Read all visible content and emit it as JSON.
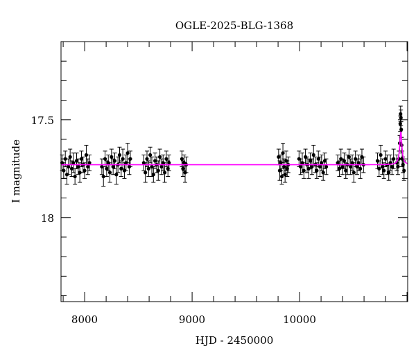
{
  "chart_data": {
    "type": "scatter",
    "title": "OGLE-2025-BLG-1368",
    "xlabel": "HJD - 2450000",
    "ylabel": "I magnitude",
    "xlim": [
      7780,
      11006
    ],
    "ylim": [
      18.43,
      17.1
    ],
    "y_inverted": true,
    "grid": false,
    "x_ticks": [
      8000,
      9000,
      10000
    ],
    "x_tick_labels": [
      "8000",
      "9000",
      "10000"
    ],
    "x_minor_step": 200,
    "y_ticks": [
      17.5,
      18
    ],
    "y_tick_labels": [
      "17.5",
      "18"
    ],
    "y_minor_step": 0.1,
    "colors": {
      "data": "#000000",
      "model": "#ff00ff",
      "model_peak": "#800080"
    },
    "model": {
      "baseline_mag": 17.73,
      "peak_mag": 17.56,
      "t0": 10942,
      "tE": 12
    },
    "points": [
      [
        7790,
        17.72,
        0.04
      ],
      [
        7805,
        17.76,
        0.04
      ],
      [
        7820,
        17.7,
        0.04
      ],
      [
        7835,
        17.78,
        0.05
      ],
      [
        7850,
        17.74,
        0.04
      ],
      [
        7865,
        17.69,
        0.04
      ],
      [
        7880,
        17.75,
        0.04
      ],
      [
        7895,
        17.72,
        0.05
      ],
      [
        7910,
        17.79,
        0.04
      ],
      [
        7925,
        17.71,
        0.04
      ],
      [
        7940,
        17.74,
        0.04
      ],
      [
        7955,
        17.77,
        0.05
      ],
      [
        7970,
        17.7,
        0.04
      ],
      [
        7985,
        17.73,
        0.04
      ],
      [
        8000,
        17.76,
        0.04
      ],
      [
        8015,
        17.68,
        0.05
      ],
      [
        8030,
        17.74,
        0.04
      ],
      [
        8045,
        17.72,
        0.04
      ],
      [
        8160,
        17.74,
        0.04
      ],
      [
        8175,
        17.79,
        0.05
      ],
      [
        8190,
        17.7,
        0.04
      ],
      [
        8205,
        17.75,
        0.04
      ],
      [
        8220,
        17.72,
        0.04
      ],
      [
        8235,
        17.77,
        0.05
      ],
      [
        8250,
        17.69,
        0.04
      ],
      [
        8265,
        17.74,
        0.04
      ],
      [
        8280,
        17.71,
        0.04
      ],
      [
        8295,
        17.78,
        0.05
      ],
      [
        8310,
        17.73,
        0.04
      ],
      [
        8325,
        17.68,
        0.04
      ],
      [
        8340,
        17.75,
        0.04
      ],
      [
        8355,
        17.7,
        0.05
      ],
      [
        8370,
        17.76,
        0.04
      ],
      [
        8385,
        17.72,
        0.04
      ],
      [
        8400,
        17.67,
        0.05
      ],
      [
        8415,
        17.74,
        0.04
      ],
      [
        8425,
        17.7,
        0.04
      ],
      [
        8550,
        17.72,
        0.04
      ],
      [
        8565,
        17.77,
        0.05
      ],
      [
        8580,
        17.7,
        0.04
      ],
      [
        8595,
        17.75,
        0.04
      ],
      [
        8610,
        17.68,
        0.04
      ],
      [
        8625,
        17.74,
        0.05
      ],
      [
        8640,
        17.78,
        0.04
      ],
      [
        8655,
        17.71,
        0.04
      ],
      [
        8670,
        17.73,
        0.04
      ],
      [
        8685,
        17.76,
        0.05
      ],
      [
        8700,
        17.69,
        0.04
      ],
      [
        8715,
        17.74,
        0.04
      ],
      [
        8730,
        17.72,
        0.04
      ],
      [
        8745,
        17.77,
        0.05
      ],
      [
        8760,
        17.7,
        0.04
      ],
      [
        8775,
        17.75,
        0.04
      ],
      [
        8785,
        17.72,
        0.04
      ],
      [
        8905,
        17.7,
        0.04
      ],
      [
        8915,
        17.75,
        0.04
      ],
      [
        8925,
        17.72,
        0.04
      ],
      [
        8935,
        17.77,
        0.05
      ],
      [
        8945,
        17.73,
        0.04
      ],
      [
        9805,
        17.69,
        0.04
      ],
      [
        9815,
        17.76,
        0.05
      ],
      [
        9825,
        17.72,
        0.04
      ],
      [
        9835,
        17.79,
        0.04
      ],
      [
        9845,
        17.67,
        0.05
      ],
      [
        9855,
        17.74,
        0.04
      ],
      [
        9865,
        17.78,
        0.04
      ],
      [
        9875,
        17.71,
        0.05
      ],
      [
        9885,
        17.75,
        0.04
      ],
      [
        9895,
        17.73,
        0.04
      ],
      [
        9995,
        17.7,
        0.04
      ],
      [
        10010,
        17.74,
        0.04
      ],
      [
        10025,
        17.72,
        0.05
      ],
      [
        10040,
        17.76,
        0.04
      ],
      [
        10055,
        17.69,
        0.04
      ],
      [
        10070,
        17.73,
        0.04
      ],
      [
        10085,
        17.75,
        0.05
      ],
      [
        10100,
        17.71,
        0.04
      ],
      [
        10115,
        17.74,
        0.04
      ],
      [
        10130,
        17.68,
        0.05
      ],
      [
        10145,
        17.73,
        0.04
      ],
      [
        10160,
        17.76,
        0.04
      ],
      [
        10175,
        17.7,
        0.04
      ],
      [
        10190,
        17.74,
        0.05
      ],
      [
        10205,
        17.72,
        0.04
      ],
      [
        10220,
        17.77,
        0.04
      ],
      [
        10235,
        17.71,
        0.04
      ],
      [
        10248,
        17.74,
        0.04
      ],
      [
        10355,
        17.72,
        0.04
      ],
      [
        10370,
        17.75,
        0.04
      ],
      [
        10385,
        17.7,
        0.05
      ],
      [
        10400,
        17.74,
        0.04
      ],
      [
        10415,
        17.71,
        0.04
      ],
      [
        10430,
        17.76,
        0.04
      ],
      [
        10445,
        17.73,
        0.05
      ],
      [
        10460,
        17.69,
        0.04
      ],
      [
        10475,
        17.74,
        0.04
      ],
      [
        10490,
        17.72,
        0.04
      ],
      [
        10505,
        17.77,
        0.05
      ],
      [
        10520,
        17.7,
        0.04
      ],
      [
        10535,
        17.74,
        0.04
      ],
      [
        10550,
        17.72,
        0.04
      ],
      [
        10565,
        17.75,
        0.05
      ],
      [
        10580,
        17.69,
        0.04
      ],
      [
        10595,
        17.73,
        0.04
      ],
      [
        10725,
        17.71,
        0.04
      ],
      [
        10740,
        17.75,
        0.04
      ],
      [
        10755,
        17.68,
        0.05
      ],
      [
        10770,
        17.74,
        0.04
      ],
      [
        10785,
        17.76,
        0.04
      ],
      [
        10800,
        17.7,
        0.04
      ],
      [
        10815,
        17.73,
        0.05
      ],
      [
        10830,
        17.77,
        0.04
      ],
      [
        10845,
        17.72,
        0.04
      ],
      [
        10860,
        17.74,
        0.04
      ],
      [
        10875,
        17.7,
        0.05
      ],
      [
        10905,
        17.72,
        0.04
      ],
      [
        10915,
        17.74,
        0.04
      ],
      [
        10925,
        17.7,
        0.04
      ],
      [
        10932,
        17.62,
        0.04
      ],
      [
        10937,
        17.52,
        0.04
      ],
      [
        10940,
        17.47,
        0.04
      ],
      [
        10943,
        17.49,
        0.04
      ],
      [
        10946,
        17.55,
        0.04
      ],
      [
        10950,
        17.63,
        0.04
      ],
      [
        10955,
        17.7,
        0.04
      ],
      [
        10962,
        17.73,
        0.04
      ],
      [
        10972,
        17.76,
        0.05
      ]
    ]
  }
}
